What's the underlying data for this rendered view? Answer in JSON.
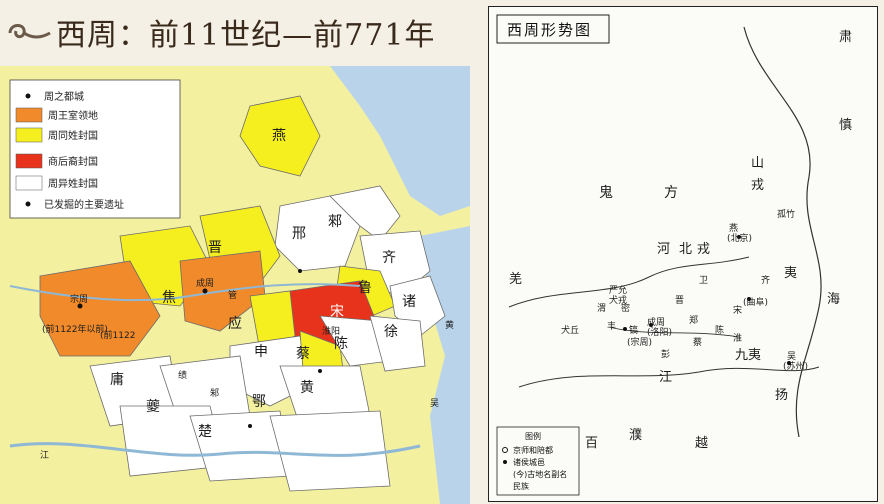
{
  "title": "西周：前11世纪—前771年",
  "left_map": {
    "legend": [
      {
        "label": "周之都城",
        "swatch": "dot"
      },
      {
        "label": "周王室领地",
        "swatch": "#f08a2a"
      },
      {
        "label": "周同姓封国",
        "swatch": "#f5ef20"
      },
      {
        "label": "商后裔封国",
        "swatch": "#e8331c"
      },
      {
        "label": "周异姓封国",
        "swatch": "#ffffff"
      },
      {
        "label": "已发掘的主要遗址",
        "swatch": "dot"
      }
    ],
    "states": [
      "燕",
      "邢",
      "郲",
      "齐",
      "晋",
      "鲁",
      "诸",
      "黄",
      "焦",
      "宋",
      "应",
      "申",
      "蔡",
      "陈",
      "徐",
      "庸",
      "黄",
      "鄂",
      "楚",
      "夔",
      "吴",
      "邾",
      "绩",
      "管"
    ],
    "annotations": [
      "(前1122年以前)",
      "(前1122",
      "宗周",
      "成周",
      "淮阳",
      "江"
    ],
    "colors": {
      "royal": "#f08a2a",
      "same_surname": "#f5ef20",
      "shang": "#e8331c",
      "other": "#ffffff",
      "sea": "#b9d4ea",
      "background": "#f3f0a0"
    }
  },
  "right_map": {
    "title": "西周形势图",
    "labels": [
      "鬼",
      "方",
      "山",
      "戎",
      "肃",
      "慎",
      "孤竹",
      "燕",
      "(北京)",
      "海",
      "北",
      "戎",
      "河",
      "夷",
      "齐",
      "羌",
      "严允",
      "犬戎",
      "卫",
      "(曲阜)",
      "渭",
      "密",
      "晋",
      "丰",
      "郑",
      "成周",
      "宋",
      "犬丘",
      "(洛阳)",
      "蔡",
      "淮",
      "陈",
      "镐",
      "(宗周)",
      "彭",
      "江",
      "九夷",
      "扬",
      "吴",
      "(苏州)",
      "百",
      "濮",
      "越"
    ],
    "legend_title": "图例",
    "legend": [
      "京师和陪都",
      "诸侯城邑",
      "(今)古地名副名",
      "民族"
    ]
  }
}
